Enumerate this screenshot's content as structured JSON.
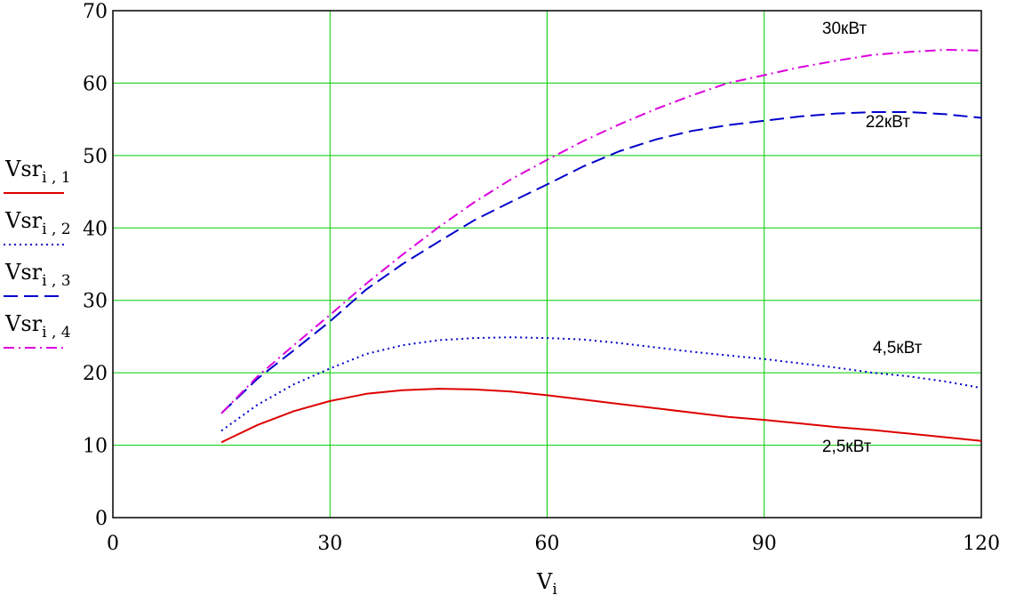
{
  "chart_data": {
    "type": "line",
    "title": "",
    "xlabel": {
      "main": "V",
      "sub": "i"
    },
    "xlim": [
      0,
      120
    ],
    "ylim": [
      0,
      70
    ],
    "xticks": [
      0,
      30,
      60,
      90,
      120
    ],
    "yticks": [
      0,
      10,
      20,
      30,
      40,
      50,
      60,
      70
    ],
    "grid": true,
    "legend_placement": "left",
    "series": [
      {
        "legend": {
          "main": "Vsr",
          "sub": "i , 1"
        },
        "color": "#dd0000",
        "dash": "solid",
        "x": [
          15,
          20,
          25,
          30,
          35,
          40,
          45,
          50,
          55,
          60,
          65,
          70,
          75,
          80,
          85,
          90,
          95,
          100,
          105,
          110,
          115,
          120
        ],
        "y": [
          10.4,
          12.8,
          14.7,
          16.1,
          17.1,
          17.6,
          17.8,
          17.7,
          17.4,
          16.9,
          16.3,
          15.7,
          15.1,
          14.5,
          13.9,
          13.5,
          13.0,
          12.5,
          12.1,
          11.6,
          11.1,
          10.6
        ]
      },
      {
        "legend": {
          "main": "Vsr",
          "sub": "i , 2"
        },
        "color": "#0000cc",
        "dash": "dotted",
        "x": [
          15,
          20,
          25,
          30,
          35,
          40,
          45,
          50,
          55,
          60,
          65,
          70,
          75,
          80,
          85,
          90,
          95,
          100,
          105,
          110,
          115,
          120
        ],
        "y": [
          12.0,
          15.6,
          18.4,
          20.6,
          22.6,
          23.8,
          24.5,
          24.8,
          24.9,
          24.8,
          24.6,
          24.1,
          23.5,
          22.9,
          22.4,
          21.9,
          21.3,
          20.7,
          20.0,
          19.5,
          18.8,
          17.9
        ]
      },
      {
        "legend": {
          "main": "Vsr",
          "sub": "i , 3"
        },
        "color": "#0000cc",
        "dash": "dashed",
        "x": [
          15,
          20,
          25,
          30,
          35,
          40,
          45,
          50,
          55,
          60,
          65,
          70,
          75,
          80,
          85,
          90,
          95,
          100,
          105,
          110,
          115,
          120
        ],
        "y": [
          14.4,
          19.2,
          23.1,
          27.1,
          31.5,
          35.0,
          38.1,
          41.1,
          43.6,
          46.0,
          48.5,
          50.6,
          52.2,
          53.4,
          54.2,
          54.8,
          55.4,
          55.8,
          56.0,
          56.0,
          55.7,
          55.2
        ]
      },
      {
        "legend": {
          "main": "Vsr",
          "sub": "i , 4"
        },
        "color": "#dd00dd",
        "dash": "dashdot",
        "x": [
          15,
          20,
          25,
          30,
          35,
          40,
          45,
          50,
          55,
          60,
          65,
          70,
          75,
          80,
          85,
          90,
          95,
          100,
          105,
          110,
          115,
          120
        ],
        "y": [
          14.4,
          19.5,
          23.8,
          28.0,
          32.3,
          36.3,
          40.1,
          43.6,
          46.7,
          49.4,
          52.0,
          54.3,
          56.4,
          58.3,
          60.0,
          61.1,
          62.2,
          63.1,
          63.9,
          64.3,
          64.6,
          64.5
        ]
      }
    ],
    "annotations": [
      {
        "text": "30кВт",
        "x": 98,
        "y": 66.8
      },
      {
        "text": "22кВт",
        "x": 104,
        "y": 53.9
      },
      {
        "text": "4,5кВт",
        "x": 105,
        "y": 22.7
      },
      {
        "text": "2,5кВт",
        "x": 98,
        "y": 9.1
      }
    ]
  }
}
